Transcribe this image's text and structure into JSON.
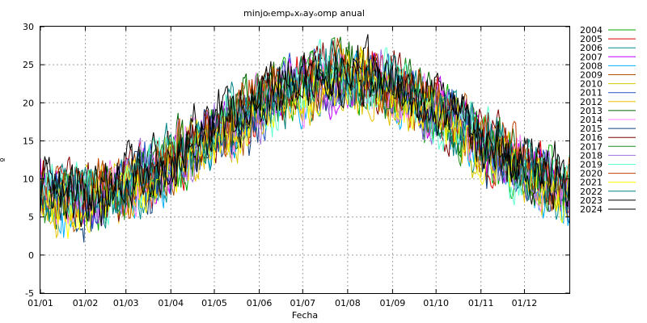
{
  "chart_data": {
    "type": "line",
    "title": "minjoₜempₑxₙayₒomp anual",
    "xlabel": "Fecha",
    "ylabel": "º",
    "ylim": [
      -5,
      30
    ],
    "yticks": [
      -5,
      0,
      5,
      10,
      15,
      20,
      25,
      30
    ],
    "xlim": [
      "01/01",
      "31/12"
    ],
    "xtick_labels": [
      "01/01",
      "01/02",
      "01/03",
      "01/04",
      "01/05",
      "01/06",
      "01/07",
      "01/08",
      "01/09",
      "01/10",
      "01/11",
      "01/12"
    ],
    "xtick_days": [
      1,
      32,
      60,
      91,
      121,
      152,
      182,
      213,
      244,
      274,
      305,
      335
    ],
    "grid": true,
    "legend_position": "right",
    "series": [
      {
        "name": "2004",
        "color": "#00aa00",
        "shift": -0.4,
        "phase": 0.3
      },
      {
        "name": "2005",
        "color": "#e00000",
        "shift": 0.2,
        "phase": 1.1
      },
      {
        "name": "2006",
        "color": "#008b8b",
        "shift": -0.1,
        "phase": 2.2
      },
      {
        "name": "2007",
        "color": "#c000ff",
        "shift": 0.3,
        "phase": 0.8
      },
      {
        "name": "2008",
        "color": "#00b0ff",
        "shift": -0.6,
        "phase": 3.1
      },
      {
        "name": "2009",
        "color": "#b05000",
        "shift": 0.1,
        "phase": 1.7
      },
      {
        "name": "2010",
        "color": "#d8c800",
        "shift": -0.3,
        "phase": 2.6
      },
      {
        "name": "2011",
        "color": "#2050c0",
        "shift": 0.4,
        "phase": 0.1
      },
      {
        "name": "2012",
        "color": "#e8c000",
        "shift": -0.2,
        "phase": 4.0
      },
      {
        "name": "2013",
        "color": "#006400",
        "shift": 0.5,
        "phase": 3.5
      },
      {
        "name": "2014",
        "color": "#ff80ff",
        "shift": 0.0,
        "phase": 2.9
      },
      {
        "name": "2015",
        "color": "#104080",
        "shift": -0.5,
        "phase": 1.4
      },
      {
        "name": "2016",
        "color": "#800000",
        "shift": 0.6,
        "phase": 5.0
      },
      {
        "name": "2017",
        "color": "#209020",
        "shift": 0.2,
        "phase": 4.4
      },
      {
        "name": "2018",
        "color": "#a070e0",
        "shift": -0.1,
        "phase": 0.5
      },
      {
        "name": "2019",
        "color": "#60ffd0",
        "shift": 0.3,
        "phase": 5.5
      },
      {
        "name": "2020",
        "color": "#c04000",
        "shift": 0.7,
        "phase": 3.8
      },
      {
        "name": "2021",
        "color": "#ffff00",
        "shift": -0.7,
        "phase": 2.0
      },
      {
        "name": "2022",
        "color": "#008080",
        "shift": 0.4,
        "phase": 4.8
      },
      {
        "name": "2023",
        "color": "#000000",
        "shift": 0.8,
        "phase": 1.9
      },
      {
        "name": "2024",
        "color": "#000000",
        "shift": 0.5,
        "phase": 6.0
      }
    ],
    "annual_cycle": {
      "min_value": 7.5,
      "min_day": 25,
      "max_value": 23.0,
      "max_day": 210,
      "noise_amplitude": 3.0
    }
  }
}
